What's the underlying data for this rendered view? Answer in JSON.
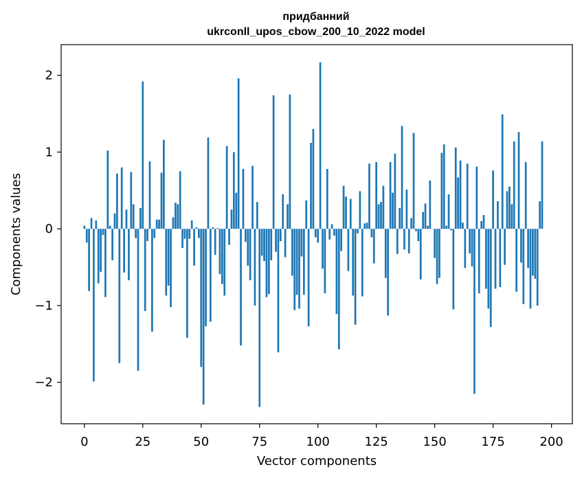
{
  "chart_data": {
    "type": "bar",
    "title_line1": "придбанний",
    "title_line2": "ukrconll_upos_cbow_200_10_2022 model",
    "xlabel": "Vector components",
    "ylabel": "Components values",
    "xlim": [
      -9.95,
      208.95
    ],
    "ylim": [
      -2.54,
      2.4
    ],
    "xticks": [
      0,
      25,
      50,
      75,
      100,
      125,
      150,
      175,
      200
    ],
    "yticks": [
      -2,
      -1,
      0,
      1,
      2
    ],
    "ytick_labels": [
      "−2",
      "−1",
      "0",
      "1",
      "2"
    ],
    "bar_color": "#1f77b4",
    "grid": false,
    "values": [
      0.04,
      -0.18,
      -0.81,
      0.14,
      -1.99,
      0.11,
      -0.71,
      -0.56,
      -0.08,
      -0.89,
      1.02,
      0.04,
      -0.41,
      0.2,
      0.72,
      -1.75,
      0.8,
      -0.57,
      0.25,
      -0.67,
      0.74,
      0.32,
      -0.12,
      -1.85,
      0.27,
      1.92,
      -1.07,
      -0.16,
      0.88,
      -1.34,
      -0.12,
      0.12,
      0.12,
      0.73,
      1.16,
      -0.87,
      -0.74,
      -1.02,
      0.15,
      0.34,
      0.32,
      0.75,
      -0.25,
      -0.13,
      -1.42,
      -0.13,
      0.11,
      -0.48,
      0.02,
      -0.12,
      -1.8,
      -2.29,
      -1.27,
      1.19,
      -1.21,
      0.02,
      -0.34,
      0.01,
      -0.59,
      -0.72,
      -0.87,
      1.08,
      -0.21,
      0.25,
      1.0,
      0.47,
      1.96,
      -1.52,
      0.78,
      -0.17,
      -0.48,
      -0.67,
      0.82,
      -1.0,
      0.35,
      -2.32,
      -0.35,
      -0.42,
      -0.89,
      -0.85,
      -0.41,
      1.74,
      -0.3,
      -1.61,
      -0.16,
      0.45,
      -0.37,
      0.32,
      1.75,
      -0.61,
      -1.06,
      -0.86,
      -1.04,
      -0.36,
      -0.86,
      0.37,
      -1.27,
      1.12,
      1.3,
      -0.11,
      -0.18,
      2.17,
      -0.52,
      -0.84,
      0.78,
      -0.14,
      0.06,
      -0.09,
      -1.11,
      -1.57,
      -0.29,
      0.56,
      0.42,
      -0.55,
      0.39,
      -0.87,
      -1.25,
      -0.06,
      0.49,
      -0.88,
      0.07,
      0.08,
      0.85,
      -0.11,
      -0.45,
      0.87,
      0.32,
      0.35,
      0.56,
      -0.64,
      -1.13,
      0.87,
      0.47,
      0.98,
      -0.33,
      0.27,
      1.34,
      -0.27,
      0.51,
      -0.32,
      0.14,
      1.25,
      -0.03,
      -0.16,
      -0.66,
      0.22,
      0.33,
      0.04,
      0.63,
      0.0,
      -0.38,
      -0.72,
      -0.64,
      0.99,
      1.1,
      0.04,
      0.45,
      -0.02,
      -1.05,
      1.06,
      0.67,
      0.89,
      0.08,
      -0.51,
      0.85,
      -0.32,
      -0.49,
      -2.15,
      0.81,
      -0.84,
      0.1,
      0.18,
      -0.78,
      -1.04,
      -1.28,
      0.76,
      -0.78,
      0.36,
      -0.76,
      1.49,
      -0.47,
      0.49,
      0.55,
      0.32,
      1.14,
      -0.82,
      1.26,
      -0.44,
      -0.98,
      0.87,
      -0.51,
      -1.04,
      -0.61,
      -0.65,
      -1.0,
      0.36,
      1.14
    ]
  }
}
